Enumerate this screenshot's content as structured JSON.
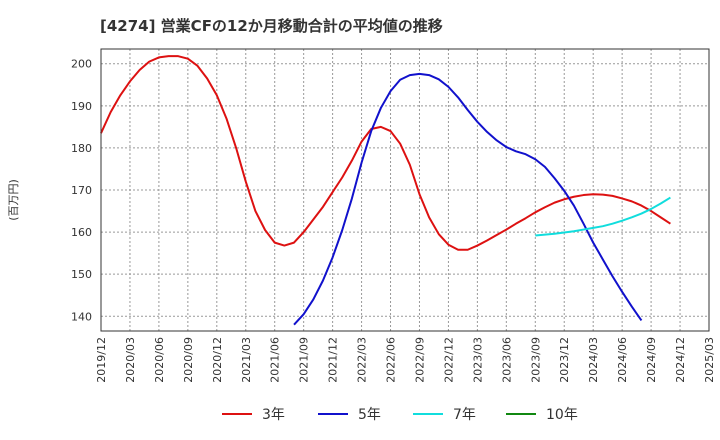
{
  "chart_data": {
    "type": "line",
    "title": "[4274]  営業CFの12か月移動合計の平均値の推移",
    "ylabel": "(百万円)",
    "xlabel": "",
    "ylim": [
      136.5,
      203.5
    ],
    "yticks": [
      140,
      150,
      160,
      170,
      180,
      190,
      200
    ],
    "grid": true,
    "legend_position": "bottom",
    "x_ticks": [
      "2019/12",
      "2020/03",
      "2020/06",
      "2020/09",
      "2020/12",
      "2021/03",
      "2021/06",
      "2021/09",
      "2021/12",
      "2022/03",
      "2022/06",
      "2022/09",
      "2022/12",
      "2023/03",
      "2023/06",
      "2023/09",
      "2023/12",
      "2024/03",
      "2024/06",
      "2024/09",
      "2024/12",
      "2025/03"
    ],
    "x_months": [
      "2019/12",
      "2020/01",
      "2020/02",
      "2020/03",
      "2020/04",
      "2020/05",
      "2020/06",
      "2020/07",
      "2020/08",
      "2020/09",
      "2020/10",
      "2020/11",
      "2020/12",
      "2021/01",
      "2021/02",
      "2021/03",
      "2021/04",
      "2021/05",
      "2021/06",
      "2021/07",
      "2021/08",
      "2021/09",
      "2021/10",
      "2021/11",
      "2021/12",
      "2022/01",
      "2022/02",
      "2022/03",
      "2022/04",
      "2022/05",
      "2022/06",
      "2022/07",
      "2022/08",
      "2022/09",
      "2022/10",
      "2022/11",
      "2022/12",
      "2023/01",
      "2023/02",
      "2023/03",
      "2023/04",
      "2023/05",
      "2023/06",
      "2023/07",
      "2023/08",
      "2023/09",
      "2023/10",
      "2023/11",
      "2023/12",
      "2024/01",
      "2024/02",
      "2024/03",
      "2024/04",
      "2024/05",
      "2024/06",
      "2024/07",
      "2024/08",
      "2024/09",
      "2024/10",
      "2024/11",
      "2024/12",
      "2025/01",
      "2025/02",
      "2025/03"
    ],
    "series": [
      {
        "name": "3年",
        "color": "#dd1111",
        "start": "2019/12",
        "values": [
          183.5,
          188.5,
          192.5,
          195.8,
          198.5,
          200.5,
          201.5,
          201.8,
          201.8,
          201.2,
          199.5,
          196.5,
          192.5,
          187.0,
          180.0,
          172.0,
          165.0,
          160.5,
          157.5,
          156.8,
          157.5,
          160.0,
          163.0,
          166.0,
          169.5,
          173.0,
          177.0,
          181.5,
          184.5,
          185.0,
          184.0,
          181.0,
          176.0,
          169.0,
          163.5,
          159.5,
          157.0,
          155.8,
          155.8,
          156.8,
          158.0,
          159.3,
          160.6,
          162.0,
          163.3,
          164.7,
          165.9,
          167.0,
          167.8,
          168.4,
          168.8,
          169.0,
          168.9,
          168.6,
          168.0,
          167.3,
          166.3,
          165.0,
          163.5,
          162.0
        ]
      },
      {
        "name": "5年",
        "color": "#1111cc",
        "start": "2021/08",
        "values": [
          138.0,
          140.5,
          144.0,
          148.5,
          154.0,
          160.5,
          168.0,
          176.5,
          184.0,
          189.5,
          193.5,
          196.2,
          197.3,
          197.6,
          197.3,
          196.3,
          194.5,
          192.0,
          189.0,
          186.2,
          183.8,
          181.8,
          180.2,
          179.2,
          178.5,
          177.3,
          175.5,
          172.8,
          169.8,
          166.3,
          162.0,
          157.5,
          153.5,
          149.5,
          145.8,
          142.3,
          139.0
        ]
      },
      {
        "name": "7年",
        "color": "#11dddd",
        "start": "2023/09",
        "values": [
          159.2,
          159.4,
          159.6,
          159.9,
          160.2,
          160.6,
          161.0,
          161.4,
          162.0,
          162.7,
          163.5,
          164.4,
          165.5,
          166.8,
          168.2
        ]
      },
      {
        "name": "10年",
        "color": "#118811",
        "start": "2023/09",
        "values": []
      }
    ]
  }
}
